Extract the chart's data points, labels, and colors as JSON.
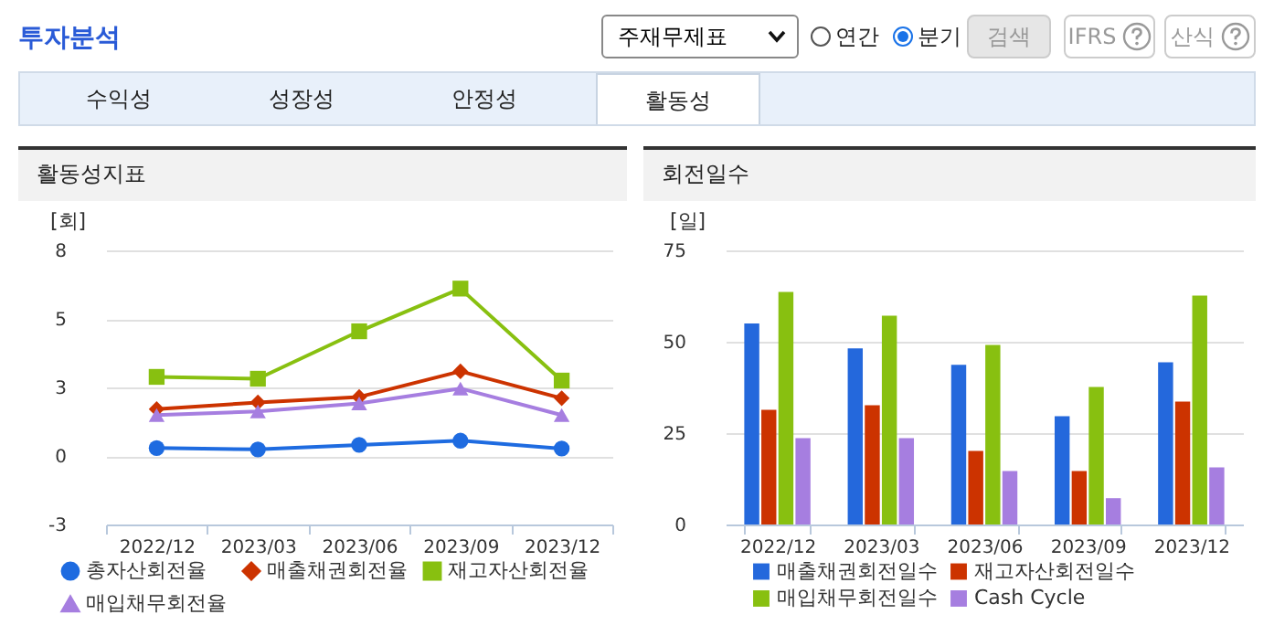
{
  "chart_data": [
    {
      "type": "other",
      "title": "투자분석",
      "annotations": [
        "주재무제표",
        "연간",
        "분기",
        "검색",
        "IFRS",
        "산식",
        "수익성",
        "성장성",
        "안정성",
        "활동성"
      ]
    },
    {
      "type": "line",
      "title": "활동성지표",
      "ylabel": "[회]",
      "categories": [
        "2022/12",
        "2023/03",
        "2023/06",
        "2023/09",
        "2023/12"
      ],
      "series": [
        {
          "name": "총자산회전율",
          "color": "#1e6be0",
          "marker": "circle",
          "values": [
            0.3,
            0.25,
            0.42,
            0.58,
            0.28
          ]
        },
        {
          "name": "매출채권회전율",
          "color": "#cc3300",
          "marker": "diamond",
          "values": [
            1.78,
            2.03,
            2.24,
            3.21,
            2.19
          ]
        },
        {
          "name": "재고자산회전율",
          "color": "#88c010",
          "marker": "square",
          "values": [
            3.0,
            2.93,
            4.73,
            6.35,
            2.86
          ]
        },
        {
          "name": "매입채무회전율",
          "color": "#a67ee0",
          "marker": "triangle",
          "values": [
            1.55,
            1.69,
            1.99,
            2.56,
            1.55
          ]
        }
      ],
      "ylim": [
        -2.6,
        7.8
      ],
      "yticks": [
        {
          "value": -2.6,
          "label": "-3"
        },
        {
          "value": 0,
          "label": "0"
        },
        {
          "value": 2.6,
          "label": "3"
        },
        {
          "value": 5.2,
          "label": "5"
        },
        {
          "value": 7.8,
          "label": "8"
        }
      ],
      "grid": "y",
      "legend": "bottom"
    },
    {
      "type": "bar",
      "title": "회전일수",
      "ylabel": "[일]",
      "categories": [
        "2022/12",
        "2023/03",
        "2023/06",
        "2023/09",
        "2023/12"
      ],
      "series": [
        {
          "name": "매출채권회전일수",
          "color": "#2468dc",
          "values": [
            55,
            48.2,
            43.7,
            29.6,
            44.4
          ]
        },
        {
          "name": "재고자산회전일수",
          "color": "#cc3300",
          "values": [
            31.4,
            32.6,
            20.1,
            14.6,
            33.6
          ]
        },
        {
          "name": "매입채무회전일수",
          "color": "#88c010",
          "values": [
            63.6,
            57.1,
            49.1,
            37.6,
            62.6
          ]
        },
        {
          "name": "Cash Cycle",
          "color": "#a67ee0",
          "values": [
            23.6,
            23.6,
            14.6,
            7.2,
            15.6
          ]
        }
      ],
      "ylim": [
        0,
        75
      ],
      "yticks": [
        0,
        25,
        50,
        75
      ],
      "grid": "y",
      "legend": "bottom"
    }
  ]
}
